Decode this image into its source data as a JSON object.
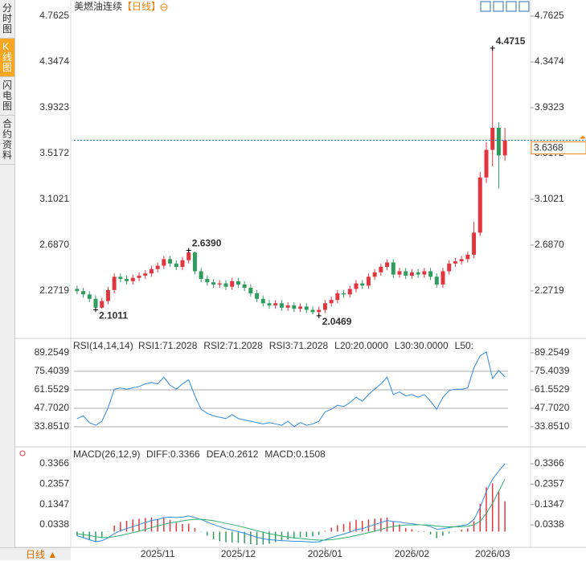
{
  "sidebar": {
    "tabs": [
      "分时图",
      "K线图",
      "闪电图",
      "合约资料"
    ],
    "period_button": "日线 ▲"
  },
  "header": {
    "title": "美燃油连续",
    "period": "【日线】"
  },
  "chart_data": [
    {
      "type": "candlestick",
      "ylim": [
        1.849,
        4.908
      ],
      "yticks": [
        4.7625,
        4.3474,
        3.9323,
        3.5172,
        3.1021,
        {
          "value": 2.687,
          "label": "2.6870"
        },
        2.2719
      ],
      "up_color": "#e2363f",
      "down_color": "#2f9c5e",
      "last_color": "#f08a1c",
      "open": [
        2.29,
        2.27,
        2.24,
        2.2,
        2.12,
        2.18,
        2.28,
        2.4,
        2.38,
        2.36,
        2.39,
        2.41,
        2.43,
        2.47,
        2.5,
        2.56,
        2.52,
        2.49,
        2.55,
        2.62,
        2.45,
        2.38,
        2.35,
        2.33,
        2.34,
        2.31,
        2.36,
        2.33,
        2.3,
        2.25,
        2.2,
        2.16,
        2.14,
        2.16,
        2.12,
        2.14,
        2.11,
        2.13,
        2.1,
        2.08,
        2.1,
        2.16,
        2.19,
        2.25,
        2.24,
        2.29,
        2.34,
        2.32,
        2.4,
        2.44,
        2.49,
        2.53,
        2.42,
        2.45,
        2.41,
        2.44,
        2.42,
        2.45,
        2.4,
        2.33,
        2.45,
        2.52,
        2.54,
        2.56,
        2.6,
        2.8,
        3.3,
        3.55,
        3.75,
        3.5
      ],
      "high": [
        2.32,
        2.3,
        2.27,
        2.23,
        2.21,
        2.31,
        2.43,
        2.43,
        2.41,
        2.42,
        2.44,
        2.46,
        2.5,
        2.53,
        2.59,
        2.59,
        2.55,
        2.58,
        2.639,
        2.63,
        2.48,
        2.41,
        2.38,
        2.37,
        2.37,
        2.39,
        2.39,
        2.36,
        2.33,
        2.28,
        2.23,
        2.19,
        2.19,
        2.19,
        2.17,
        2.17,
        2.16,
        2.16,
        2.13,
        2.13,
        2.19,
        2.22,
        2.28,
        2.28,
        2.32,
        2.37,
        2.37,
        2.43,
        2.47,
        2.52,
        2.56,
        2.56,
        2.48,
        2.48,
        2.47,
        2.47,
        2.48,
        2.48,
        2.43,
        2.48,
        2.55,
        2.57,
        2.59,
        2.63,
        2.9,
        3.35,
        3.62,
        4.4715,
        3.8,
        3.75
      ],
      "low": [
        2.24,
        2.21,
        2.17,
        2.1011,
        2.11,
        2.15,
        2.25,
        2.35,
        2.33,
        2.33,
        2.36,
        2.38,
        2.4,
        2.44,
        2.47,
        2.49,
        2.46,
        2.46,
        2.52,
        2.42,
        2.35,
        2.32,
        2.3,
        2.3,
        2.28,
        2.28,
        2.3,
        2.27,
        2.22,
        2.17,
        2.13,
        2.11,
        2.11,
        2.09,
        2.09,
        2.08,
        2.08,
        2.07,
        2.06,
        2.0469,
        2.07,
        2.13,
        2.16,
        2.21,
        2.21,
        2.26,
        2.29,
        2.29,
        2.37,
        2.41,
        2.46,
        2.39,
        2.39,
        2.38,
        2.38,
        2.39,
        2.39,
        2.37,
        2.3,
        2.3,
        2.42,
        2.49,
        2.51,
        2.53,
        2.57,
        2.77,
        3.25,
        3.4,
        3.2,
        3.45
      ],
      "close": [
        2.27,
        2.24,
        2.2,
        2.12,
        2.18,
        2.28,
        2.4,
        2.38,
        2.36,
        2.39,
        2.41,
        2.43,
        2.47,
        2.5,
        2.56,
        2.52,
        2.49,
        2.55,
        2.62,
        2.45,
        2.38,
        2.35,
        2.33,
        2.34,
        2.31,
        2.36,
        2.33,
        2.3,
        2.25,
        2.2,
        2.16,
        2.14,
        2.16,
        2.12,
        2.14,
        2.11,
        2.13,
        2.1,
        2.08,
        2.1,
        2.16,
        2.19,
        2.25,
        2.24,
        2.29,
        2.34,
        2.32,
        2.4,
        2.44,
        2.49,
        2.53,
        2.42,
        2.45,
        2.41,
        2.44,
        2.42,
        2.45,
        2.4,
        2.33,
        2.45,
        2.52,
        2.54,
        2.56,
        2.6,
        2.8,
        3.3,
        3.55,
        3.75,
        3.5,
        3.6368
      ],
      "annotations": [
        {
          "value": 4.4715,
          "label": "4.4715"
        },
        {
          "value": 2.639,
          "label": "2.6390"
        },
        {
          "value": 2.1011,
          "label": "2.1011"
        },
        {
          "value": 2.0469,
          "label": "2.0469"
        }
      ]
    },
    {
      "type": "line",
      "title": "RSI(14,14,14)",
      "legend": [
        {
          "text": "RSI1:71.2028",
          "color": "#2f8be0"
        },
        {
          "text": "RSI2:71.2028",
          "color": "#2fae6e"
        },
        {
          "text": "RSI3:71.2028",
          "color": "#2f8be0"
        },
        {
          "text": "L20:20.0000",
          "color": "#999999"
        },
        {
          "text": "L30:30.0000",
          "color": "#999999"
        },
        {
          "text": "L50:",
          "color": "#999999"
        }
      ],
      "ylim": [
        19.4,
        97.7
      ],
      "yticks": [
        89.2549,
        75.4039,
        61.5529,
        {
          "value": 47.702,
          "label": "47.7020"
        },
        {
          "value": 33.851,
          "label": "33.8510"
        }
      ],
      "series": [
        {
          "color": "#2f8be0",
          "values": [
            40,
            42,
            37,
            35,
            38,
            48,
            62,
            63,
            62,
            63,
            64,
            66,
            67,
            66,
            71,
            65,
            62,
            66,
            69,
            57,
            47,
            44,
            42,
            41,
            40,
            43,
            40,
            39,
            38,
            37,
            36,
            37,
            36,
            35,
            38,
            34,
            37,
            35,
            36,
            38,
            45,
            47,
            50,
            49,
            52,
            56,
            53,
            58,
            62,
            66,
            71,
            58,
            60,
            57,
            58,
            56,
            58,
            53,
            47,
            56,
            61,
            62,
            62,
            63,
            78,
            87,
            90,
            70,
            76,
            71.2028
          ]
        }
      ]
    },
    {
      "type": "macd",
      "title": "MACD(26,12,9)",
      "legend": [
        {
          "text": "DIFF:0.3366",
          "color": "#2f8be0"
        },
        {
          "text": "DEA:0.2612",
          "color": "#2fae6e"
        },
        {
          "text": "MACD:0.1508",
          "color": "#2f8be0"
        }
      ],
      "ylim": [
        -0.0738,
        0.4043
      ],
      "yticks": [
        0.3366,
        0.2357,
        0.1347,
        0.0338
      ],
      "categories": [
        null,
        null,
        null,
        null,
        null,
        null,
        null,
        null,
        null,
        null,
        null,
        null,
        null,
        "2025/11",
        null,
        null,
        null,
        null,
        null,
        null,
        null,
        null,
        null,
        null,
        null,
        null,
        "2025/12",
        null,
        null,
        null,
        null,
        null,
        null,
        null,
        null,
        null,
        null,
        null,
        null,
        null,
        "2026/01",
        null,
        null,
        null,
        null,
        null,
        null,
        null,
        null,
        null,
        null,
        null,
        null,
        null,
        "2026/02",
        null,
        null,
        null,
        null,
        null,
        null,
        null,
        null,
        null,
        null,
        null,
        null,
        "2026/03",
        null,
        null
      ],
      "series": [
        {
          "color": "#2f8be0",
          "values": [
            -0.02,
            -0.03,
            -0.04,
            -0.05,
            -0.045,
            -0.03,
            -0.01,
            0.005,
            0.015,
            0.025,
            0.035,
            0.045,
            0.055,
            0.06,
            0.07,
            0.072,
            0.07,
            0.072,
            0.078,
            0.07,
            0.06,
            0.048,
            0.035,
            0.025,
            0.015,
            0.008,
            0,
            -0.008,
            -0.018,
            -0.028,
            -0.035,
            -0.04,
            -0.042,
            -0.045,
            -0.046,
            -0.048,
            -0.048,
            -0.05,
            -0.052,
            -0.05,
            -0.04,
            -0.03,
            -0.02,
            -0.012,
            -0.002,
            0.01,
            0.015,
            0.025,
            0.035,
            0.045,
            0.055,
            0.05,
            0.048,
            0.042,
            0.04,
            0.035,
            0.033,
            0.025,
            0.012,
            0.015,
            0.02,
            0.025,
            0.03,
            0.035,
            0.06,
            0.12,
            0.2,
            0.26,
            0.3,
            0.3366
          ]
        },
        {
          "color": "#2fae6e",
          "values": [
            -0.01,
            -0.014,
            -0.019,
            -0.025,
            -0.029,
            -0.029,
            -0.025,
            -0.019,
            -0.012,
            -0.005,
            0.003,
            0.011,
            0.02,
            0.028,
            0.036,
            0.043,
            0.048,
            0.053,
            0.058,
            0.061,
            0.061,
            0.058,
            0.054,
            0.048,
            0.041,
            0.035,
            0.028,
            0.021,
            0.013,
            0.005,
            -0.003,
            -0.01,
            -0.016,
            -0.022,
            -0.027,
            -0.031,
            -0.034,
            -0.037,
            -0.04,
            -0.042,
            -0.042,
            -0.04,
            -0.036,
            -0.031,
            -0.026,
            -0.019,
            -0.012,
            -0.005,
            0.003,
            0.011,
            0.02,
            0.026,
            0.03,
            0.033,
            0.034,
            0.034,
            0.034,
            0.032,
            0.028,
            0.025,
            0.024,
            0.024,
            0.025,
            0.027,
            0.034,
            0.051,
            0.09,
            0.14,
            0.2,
            0.2612
          ]
        }
      ],
      "histogram": {
        "up_color": "#e2363f",
        "down_color": "#2f9c5e",
        "values": [
          -0.02,
          -0.032,
          -0.042,
          -0.05,
          -0.032,
          -0.002,
          0.03,
          0.048,
          0.054,
          0.06,
          0.064,
          0.068,
          0.07,
          0.064,
          0.068,
          0.058,
          0.044,
          0.038,
          0.04,
          0.018,
          -0.002,
          -0.02,
          -0.038,
          -0.046,
          -0.052,
          -0.054,
          -0.056,
          -0.058,
          -0.062,
          -0.066,
          -0.064,
          -0.06,
          -0.052,
          -0.046,
          -0.038,
          -0.034,
          -0.028,
          -0.026,
          -0.024,
          -0.016,
          0.004,
          0.02,
          0.032,
          0.038,
          0.048,
          0.058,
          0.054,
          0.06,
          0.064,
          0.068,
          0.07,
          0.048,
          0.036,
          0.018,
          0.012,
          0.002,
          -0.002,
          -0.014,
          -0.032,
          -0.02,
          -0.008,
          0.002,
          0.01,
          0.016,
          0.052,
          0.138,
          0.22,
          0.24,
          0.2,
          0.1508
        ]
      }
    }
  ]
}
